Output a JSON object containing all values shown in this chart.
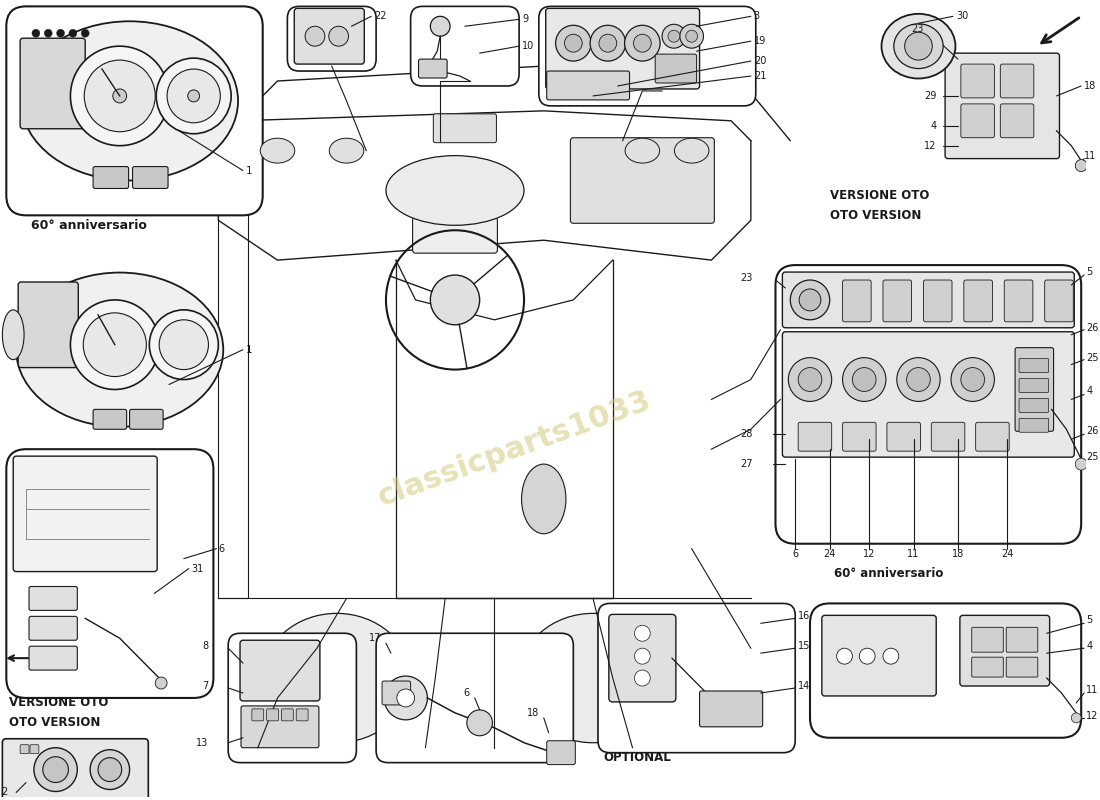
{
  "bg_color": "#ffffff",
  "line_color": "#1a1a1a",
  "light_line_color": "#888888",
  "watermark_color": "#d4c97a",
  "box_labels": {
    "top_left_anniv": "60° anniversario",
    "bottom_left_versione": "VERSIONE OTO\nOTO VERSION",
    "top_right_versione": "VERSIONE OTO\nOTO VERSION",
    "right_anniv": "60° anniversario",
    "optional": "OPTIONAL"
  },
  "layout": {
    "fig_w": 11.0,
    "fig_h": 8.0,
    "dpi": 100
  }
}
